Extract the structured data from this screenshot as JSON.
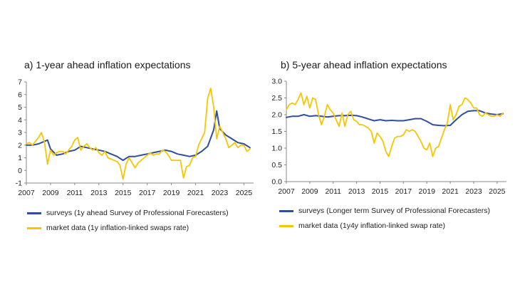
{
  "panels": {
    "a": {
      "title": "a)  1-year ahead inflation expectations",
      "legend": {
        "surveys": "surveys (1y ahead Survey of Professional Forecasters)",
        "market": "market data (1y inflation-linked swaps rate)"
      }
    },
    "b": {
      "title": "b)  5-year ahead inflation expectations",
      "legend": {
        "surveys": "surveys (Longer term Survey of Professional Forecasters)",
        "market": "market data (1y4y inflation-linked swap rate)"
      }
    }
  },
  "colors": {
    "surveys": "#2f4e9c",
    "market": "#f7c600",
    "axis": "#888888"
  },
  "chart_data": [
    {
      "type": "line",
      "title": "a)  1-year ahead inflation expectations",
      "xlim": [
        2007,
        2025.8
      ],
      "ylim": [
        -1,
        7
      ],
      "x_ticks": [
        2007,
        2009,
        2011,
        2013,
        2015,
        2017,
        2019,
        2021,
        2023,
        2025
      ],
      "y_ticks": [
        -1,
        0,
        1,
        2,
        3,
        4,
        5,
        6,
        7
      ],
      "y_tick_labels": [
        "-1",
        "0",
        "1",
        "2",
        "3",
        "4",
        "5",
        "6",
        "7"
      ],
      "series": [
        {
          "name": "surveys (1y ahead Survey of Professional Forecasters)",
          "color": "#2f4e9c",
          "x": [
            2007.0,
            2007.5,
            2008.0,
            2008.5,
            2008.75,
            2009.0,
            2009.5,
            2010.0,
            2010.5,
            2011.0,
            2011.5,
            2012.0,
            2012.5,
            2013.0,
            2013.5,
            2014.0,
            2014.5,
            2015.0,
            2015.5,
            2016.0,
            2016.5,
            2017.0,
            2017.5,
            2018.0,
            2018.5,
            2019.0,
            2019.5,
            2020.0,
            2020.5,
            2021.0,
            2021.5,
            2022.0,
            2022.5,
            2022.75,
            2023.0,
            2023.5,
            2024.0,
            2024.5,
            2025.0,
            2025.5
          ],
          "y": [
            2.0,
            2.0,
            2.1,
            2.3,
            2.4,
            1.7,
            1.2,
            1.3,
            1.5,
            1.6,
            1.9,
            1.8,
            1.7,
            1.6,
            1.5,
            1.3,
            1.1,
            0.8,
            1.1,
            1.1,
            1.2,
            1.3,
            1.4,
            1.5,
            1.6,
            1.5,
            1.3,
            1.2,
            1.1,
            1.2,
            1.5,
            1.9,
            3.2,
            4.7,
            3.3,
            2.8,
            2.5,
            2.2,
            2.1,
            1.8
          ]
        },
        {
          "name": "market data (1y inflation-linked swaps rate)",
          "color": "#f7c600",
          "x": [
            2007.0,
            2007.25,
            2007.5,
            2007.75,
            2008.0,
            2008.25,
            2008.5,
            2008.75,
            2009.0,
            2009.25,
            2009.5,
            2009.75,
            2010.0,
            2010.25,
            2010.5,
            2010.75,
            2011.0,
            2011.25,
            2011.5,
            2011.75,
            2012.0,
            2012.25,
            2012.5,
            2012.75,
            2013.0,
            2013.25,
            2013.5,
            2013.75,
            2014.0,
            2014.25,
            2014.5,
            2014.75,
            2015.0,
            2015.25,
            2015.5,
            2015.75,
            2016.0,
            2016.25,
            2016.5,
            2016.75,
            2017.0,
            2017.25,
            2017.5,
            2017.75,
            2018.0,
            2018.25,
            2018.5,
            2018.75,
            2019.0,
            2019.25,
            2019.5,
            2019.75,
            2020.0,
            2020.25,
            2020.5,
            2020.75,
            2021.0,
            2021.25,
            2021.5,
            2021.75,
            2022.0,
            2022.25,
            2022.5,
            2022.75,
            2023.0,
            2023.25,
            2023.5,
            2023.75,
            2024.0,
            2024.25,
            2024.5,
            2024.75,
            2025.0,
            2025.25,
            2025.5
          ],
          "y": [
            2.1,
            2.2,
            2.0,
            2.3,
            2.6,
            3.0,
            2.2,
            0.5,
            1.6,
            1.2,
            1.4,
            1.5,
            1.5,
            1.3,
            1.6,
            1.9,
            2.4,
            2.6,
            1.6,
            1.9,
            2.1,
            1.8,
            1.6,
            1.8,
            1.4,
            1.2,
            1.5,
            1.0,
            0.9,
            0.8,
            0.7,
            0.4,
            -0.7,
            0.5,
            1.0,
            0.6,
            0.2,
            0.6,
            0.8,
            1.0,
            1.2,
            1.4,
            1.2,
            1.3,
            1.3,
            1.6,
            1.5,
            1.2,
            0.8,
            0.8,
            0.8,
            0.8,
            -0.6,
            0.3,
            0.4,
            1.0,
            1.1,
            2.0,
            2.5,
            3.0,
            5.7,
            6.5,
            5.0,
            2.5,
            3.5,
            3.0,
            2.5,
            1.8,
            2.0,
            2.2,
            1.8,
            2.0,
            2.0,
            1.5,
            1.7
          ]
        }
      ]
    },
    {
      "type": "line",
      "title": "b)  5-year ahead inflation expectations",
      "xlim": [
        2007,
        2025.8
      ],
      "ylim": [
        0,
        3
      ],
      "x_ticks": [
        2007,
        2009,
        2011,
        2013,
        2015,
        2017,
        2019,
        2021,
        2023,
        2025
      ],
      "y_ticks": [
        0,
        0.5,
        1,
        1.5,
        2,
        2.5,
        3
      ],
      "y_tick_labels": [
        "0.0",
        "0.5",
        "1.0",
        "1.5",
        "2.0",
        "2.5",
        "3.0"
      ],
      "series": [
        {
          "name": "surveys (Longer term Survey of Professional Forecasters)",
          "color": "#2f4e9c",
          "x": [
            2007.0,
            2007.5,
            2008.0,
            2008.5,
            2009.0,
            2009.5,
            2010.0,
            2010.5,
            2011.0,
            2011.5,
            2012.0,
            2012.5,
            2013.0,
            2013.5,
            2014.0,
            2014.5,
            2015.0,
            2015.5,
            2016.0,
            2016.5,
            2017.0,
            2017.5,
            2018.0,
            2018.5,
            2019.0,
            2019.5,
            2020.0,
            2020.5,
            2021.0,
            2021.5,
            2022.0,
            2022.5,
            2023.0,
            2023.5,
            2024.0,
            2024.5,
            2025.0,
            2025.5
          ],
          "y": [
            1.92,
            1.95,
            1.95,
            2.0,
            1.95,
            1.97,
            1.95,
            1.93,
            1.95,
            1.97,
            1.97,
            1.98,
            1.97,
            1.93,
            1.87,
            1.82,
            1.85,
            1.82,
            1.83,
            1.82,
            1.82,
            1.85,
            1.88,
            1.88,
            1.8,
            1.7,
            1.68,
            1.67,
            1.68,
            1.85,
            2.0,
            2.1,
            2.12,
            2.12,
            2.05,
            2.02,
            2.0,
            2.03
          ]
        },
        {
          "name": "market data (1y4y inflation-linked swap rate)",
          "color": "#f7c600",
          "x": [
            2007.0,
            2007.25,
            2007.5,
            2007.75,
            2008.0,
            2008.25,
            2008.5,
            2008.75,
            2009.0,
            2009.25,
            2009.5,
            2009.75,
            2010.0,
            2010.25,
            2010.5,
            2010.75,
            2011.0,
            2011.25,
            2011.5,
            2011.75,
            2012.0,
            2012.25,
            2012.5,
            2012.75,
            2013.0,
            2013.25,
            2013.5,
            2013.75,
            2014.0,
            2014.25,
            2014.5,
            2014.75,
            2015.0,
            2015.25,
            2015.5,
            2015.75,
            2016.0,
            2016.25,
            2016.5,
            2016.75,
            2017.0,
            2017.25,
            2017.5,
            2017.75,
            2018.0,
            2018.25,
            2018.5,
            2018.75,
            2019.0,
            2019.25,
            2019.5,
            2019.75,
            2020.0,
            2020.25,
            2020.5,
            2020.75,
            2021.0,
            2021.25,
            2021.5,
            2021.75,
            2022.0,
            2022.25,
            2022.5,
            2022.75,
            2023.0,
            2023.25,
            2023.5,
            2023.75,
            2024.0,
            2024.25,
            2024.5,
            2024.75,
            2025.0,
            2025.25,
            2025.5
          ],
          "y": [
            2.15,
            2.3,
            2.35,
            2.3,
            2.45,
            2.65,
            2.3,
            2.55,
            2.2,
            2.5,
            2.45,
            2.0,
            1.7,
            1.95,
            2.3,
            2.15,
            2.05,
            1.85,
            1.65,
            2.05,
            1.65,
            2.0,
            2.1,
            1.85,
            1.8,
            1.7,
            1.7,
            1.65,
            1.6,
            1.5,
            1.15,
            1.45,
            1.35,
            1.2,
            0.9,
            0.75,
            1.05,
            1.3,
            1.35,
            1.35,
            1.4,
            1.55,
            1.5,
            1.55,
            1.5,
            1.35,
            1.2,
            1.0,
            0.95,
            1.15,
            0.75,
            1.0,
            1.05,
            1.3,
            1.55,
            1.75,
            2.3,
            1.85,
            2.0,
            2.25,
            2.3,
            2.5,
            2.45,
            2.35,
            2.2,
            2.2,
            2.0,
            1.95,
            2.05,
            2.0,
            1.95,
            1.95,
            2.0,
            1.95,
            2.05
          ]
        }
      ]
    }
  ]
}
